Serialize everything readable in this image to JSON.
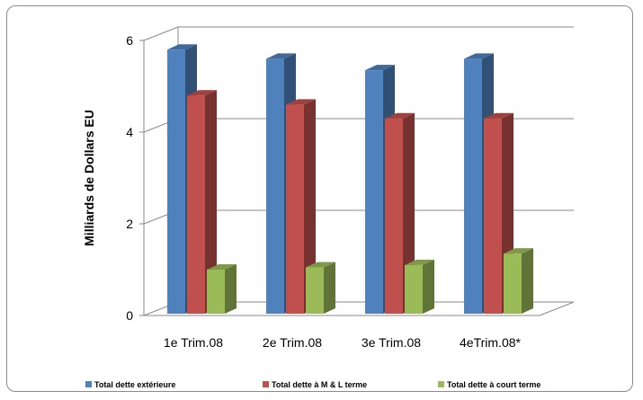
{
  "chart_data": {
    "type": "bar",
    "title": "",
    "xlabel": "",
    "ylabel": "Milliards de Dollars EU",
    "categories": [
      "1e Trim.08",
      "2e Trim.08",
      "3e Trim.08",
      "4eTrim.08*"
    ],
    "series": [
      {
        "name": "Total dette extérieure",
        "values": [
          5.8,
          5.6,
          5.35,
          5.6
        ],
        "color": "#4f81bd"
      },
      {
        "name": "Total dette à M & L terme",
        "values": [
          4.8,
          4.6,
          4.3,
          4.3
        ],
        "color": "#c0504d"
      },
      {
        "name": "Total dette à court  terme",
        "values": [
          1.0,
          1.05,
          1.1,
          1.35
        ],
        "color": "#9bbb59"
      }
    ],
    "ylim": [
      0,
      6
    ],
    "yticks": [
      0,
      2,
      4,
      6
    ],
    "grid": true,
    "legend_position": "bottom",
    "style": "3d-column"
  }
}
